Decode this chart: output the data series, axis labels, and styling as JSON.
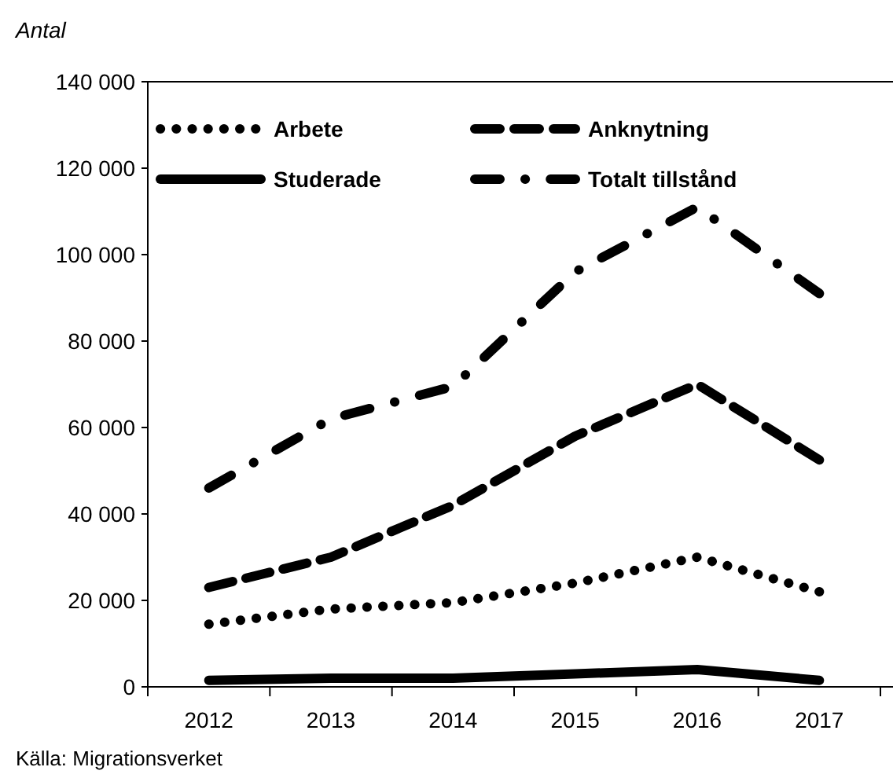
{
  "chart_data": {
    "type": "line",
    "ylabel": "Antal",
    "annotations": [
      "Källa: Migrationsverket"
    ],
    "categories": [
      "2012",
      "2013",
      "2014",
      "2015",
      "2016",
      "2017"
    ],
    "series": [
      {
        "name": "Arbete",
        "color": "#000000",
        "line_style": "dotted",
        "values": [
          14500,
          18000,
          19500,
          24000,
          30000,
          22000
        ]
      },
      {
        "name": "Anknytning",
        "color": "#000000",
        "line_style": "dashed",
        "values": [
          23000,
          30000,
          42000,
          58000,
          70000,
          52500
        ]
      },
      {
        "name": "Studerade",
        "color": "#000000",
        "line_style": "solid",
        "values": [
          1500,
          2000,
          2000,
          3000,
          4000,
          1500
        ]
      },
      {
        "name": "Totalt tillstånd",
        "color": "#000000",
        "line_style": "dashdot",
        "values": [
          46000,
          62000,
          69500,
          96000,
          111000,
          91000
        ]
      }
    ],
    "ylim": [
      0,
      140000
    ],
    "yticks": [
      0,
      {
        "value": 20000,
        "label": "20 000"
      },
      {
        "value": 40000,
        "label": "40 000"
      },
      {
        "value": 60000,
        "label": "60 000"
      },
      {
        "value": 80000,
        "label": "80 000"
      },
      {
        "value": 100000,
        "label": "100 000"
      },
      {
        "value": 120000,
        "label": "120 000"
      },
      {
        "value": 140000,
        "label": "140 000"
      }
    ],
    "grid": false,
    "legend": "top",
    "marker": "none"
  }
}
